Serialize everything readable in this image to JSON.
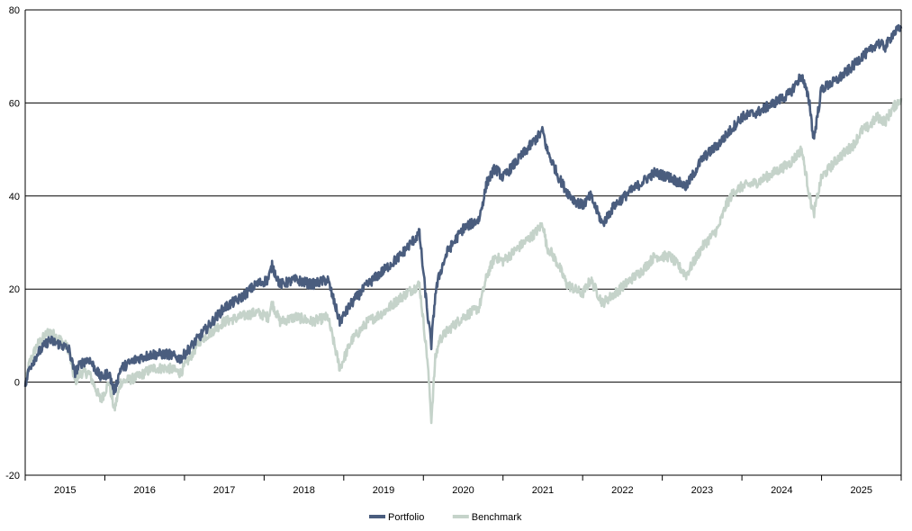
{
  "chart_data": {
    "type": "line",
    "title": "",
    "xlabel": "",
    "ylabel": "",
    "ylim": [
      -20,
      80
    ],
    "yticks": [
      -20,
      0,
      20,
      40,
      60,
      80
    ],
    "ytick_labels": [
      "-20",
      "0",
      "20",
      "40",
      "60",
      "80"
    ],
    "xlim": [
      2015.0,
      2026.0
    ],
    "year_labels": [
      "2015",
      "2016",
      "2017",
      "2018",
      "2019",
      "2020",
      "2021",
      "2022",
      "2023",
      "2024",
      "2025"
    ],
    "grid": "horizontal",
    "legend_position": "bottom-center",
    "series": [
      {
        "name": "Portfolio",
        "color": "#4a5d7e",
        "x": [
          2015.0,
          2015.05,
          2015.15,
          2015.3,
          2015.45,
          2015.55,
          2015.62,
          2015.7,
          2015.8,
          2015.95,
          2016.05,
          2016.12,
          2016.2,
          2016.4,
          2016.6,
          2016.8,
          2016.95,
          2017.2,
          2017.5,
          2017.7,
          2017.9,
          2018.05,
          2018.1,
          2018.2,
          2018.4,
          2018.6,
          2018.8,
          2018.95,
          2019.1,
          2019.3,
          2019.5,
          2019.7,
          2019.95,
          2020.05,
          2020.1,
          2020.15,
          2020.2,
          2020.3,
          2020.5,
          2020.7,
          2020.8,
          2020.9,
          2021.0,
          2021.2,
          2021.4,
          2021.5,
          2021.55,
          2021.6,
          2021.7,
          2021.8,
          2021.9,
          2022.0,
          2022.1,
          2022.25,
          2022.4,
          2022.6,
          2022.75,
          2022.9,
          2023.1,
          2023.3,
          2023.5,
          2023.7,
          2023.8,
          2023.9,
          2024.0,
          2024.2,
          2024.4,
          2024.6,
          2024.75,
          2024.8,
          2024.85,
          2024.9,
          2025.0,
          2025.2,
          2025.4,
          2025.5,
          2025.6,
          2025.7,
          2025.8,
          2025.9,
          2026.0
        ],
        "values": [
          -1,
          3,
          6,
          9,
          8,
          7,
          2,
          4,
          5,
          1,
          2,
          -2,
          3,
          5,
          6,
          6,
          5,
          10,
          16,
          18,
          21,
          22,
          25,
          21,
          22,
          21,
          22,
          13,
          17,
          21,
          24,
          27,
          32,
          15,
          8,
          19,
          23,
          28,
          33,
          35,
          43,
          46,
          44,
          48,
          52,
          54,
          50,
          48,
          44,
          41,
          39,
          38,
          40,
          34,
          38,
          41,
          43,
          45,
          44,
          42,
          48,
          51,
          53,
          55,
          57,
          58,
          60,
          62,
          66,
          63,
          60,
          52,
          63,
          65,
          68,
          70,
          71,
          73,
          72,
          75,
          76
        ]
      },
      {
        "name": "Benchmark",
        "color": "#c5d3ca",
        "x": [
          2015.0,
          2015.05,
          2015.15,
          2015.3,
          2015.45,
          2015.55,
          2015.62,
          2015.7,
          2015.8,
          2015.95,
          2016.05,
          2016.12,
          2016.2,
          2016.4,
          2016.6,
          2016.8,
          2016.95,
          2017.2,
          2017.5,
          2017.7,
          2017.9,
          2018.05,
          2018.1,
          2018.2,
          2018.4,
          2018.6,
          2018.8,
          2018.95,
          2019.1,
          2019.3,
          2019.5,
          2019.7,
          2019.95,
          2020.05,
          2020.1,
          2020.15,
          2020.2,
          2020.3,
          2020.5,
          2020.7,
          2020.8,
          2020.9,
          2021.0,
          2021.2,
          2021.4,
          2021.5,
          2021.55,
          2021.6,
          2021.7,
          2021.8,
          2021.9,
          2022.0,
          2022.1,
          2022.25,
          2022.4,
          2022.6,
          2022.75,
          2022.9,
          2023.1,
          2023.3,
          2023.5,
          2023.7,
          2023.8,
          2023.9,
          2024.0,
          2024.2,
          2024.4,
          2024.6,
          2024.75,
          2024.8,
          2024.85,
          2024.9,
          2025.0,
          2025.2,
          2025.4,
          2025.5,
          2025.6,
          2025.7,
          2025.8,
          2025.9,
          2026.0
        ],
        "values": [
          -1,
          4,
          8,
          11,
          9,
          7,
          0,
          2,
          2,
          -4,
          0,
          -6,
          0,
          1,
          3,
          3,
          2,
          9,
          13,
          14,
          15,
          14,
          17,
          13,
          14,
          13,
          14,
          3,
          9,
          13,
          15,
          18,
          21,
          5,
          -8,
          5,
          9,
          11,
          14,
          16,
          23,
          27,
          26,
          29,
          32,
          34,
          29,
          28,
          25,
          21,
          20,
          19,
          22,
          17,
          19,
          22,
          24,
          27,
          27,
          23,
          29,
          33,
          38,
          41,
          42,
          43,
          45,
          47,
          50,
          45,
          40,
          36,
          44,
          48,
          51,
          54,
          55,
          57,
          56,
          59,
          61
        ]
      }
    ]
  }
}
